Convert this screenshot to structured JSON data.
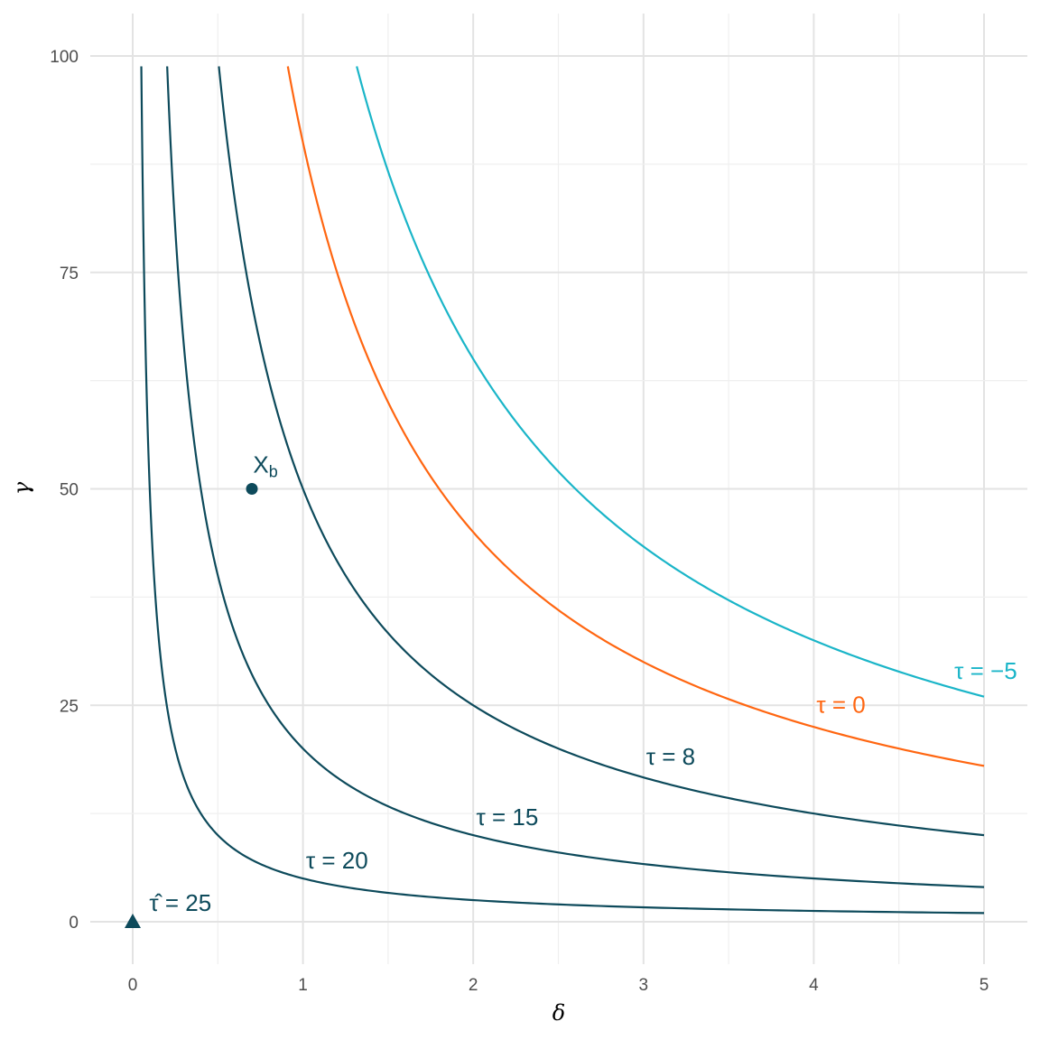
{
  "chart_data": {
    "type": "line",
    "title": "",
    "xlabel": "δ",
    "ylabel": "γ",
    "xlim": [
      0,
      5
    ],
    "ylim": [
      0,
      100
    ],
    "x_ticks": [
      "0",
      "1",
      "2",
      "3",
      "4",
      "5"
    ],
    "y_ticks": [
      "0",
      "25",
      "50",
      "75",
      "100"
    ],
    "grid": true,
    "series": [
      {
        "name": "τ = 20",
        "formula": "γ = 5/δ",
        "k": 5,
        "color": "#0d4a5b",
        "label": "τ = 20",
        "label_at": [
          1.2,
          7.1
        ]
      },
      {
        "name": "τ = 15",
        "formula": "γ = 20/δ",
        "k": 20,
        "color": "#0d4a5b",
        "label": "τ = 15",
        "label_at": [
          2.2,
          12.1
        ]
      },
      {
        "name": "τ = 8",
        "formula": "γ = 50/δ",
        "k": 50,
        "color": "#0d4a5b",
        "label": "τ = 8",
        "label_at": [
          3.16,
          19.1
        ]
      },
      {
        "name": "τ = 0",
        "formula": "γ = 90/δ",
        "k": 90,
        "color": "#ff6611",
        "label": "τ = 0",
        "label_at": [
          4.16,
          25.1
        ]
      },
      {
        "name": "τ = −5",
        "formula": "γ = 130/δ",
        "k": 130,
        "color": "#1ab5c8",
        "label": "τ = −5",
        "label_at": [
          5.01,
          29
        ]
      }
    ],
    "points": [
      {
        "name": "X_b",
        "x": 0.7,
        "y": 50,
        "shape": "circle",
        "color": "#0d4a5b",
        "label": "X",
        "label_sub": "b",
        "label_at": [
          0.78,
          52.8
        ]
      },
      {
        "name": "tau_hat",
        "x": 0,
        "y": 0,
        "shape": "triangle",
        "color": "#0d4a5b",
        "label": "τ̂ = 25",
        "label_at": [
          0.28,
          2.2
        ]
      }
    ]
  }
}
